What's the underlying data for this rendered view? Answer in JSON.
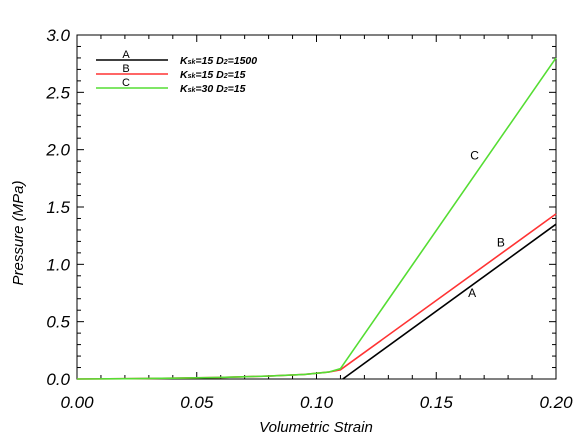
{
  "chart_data": {
    "type": "line",
    "title": "",
    "xlabel": "Volumetric Strain",
    "ylabel": "Pressure (MPa)",
    "xlim": [
      0.0,
      0.2
    ],
    "ylim": [
      0.0,
      3.0
    ],
    "x_ticks": [
      "0.00",
      "0.05",
      "0.10",
      "0.15",
      "0.20"
    ],
    "y_ticks": [
      "0.0",
      "0.5",
      "1.0",
      "1.5",
      "2.0",
      "2.5",
      "3.0"
    ],
    "grid": false,
    "legend_position": "top-left",
    "series": [
      {
        "name": "A",
        "legend_label": {
          "prefix": "K",
          "sub1": "sk",
          "mid": "=15 D",
          "sub2": "2",
          "suffix": "=1500"
        },
        "color": "#000000",
        "points": [
          [
            0.111,
            0.0
          ],
          [
            0.2,
            1.35
          ]
        ]
      },
      {
        "name": "B",
        "legend_label": {
          "prefix": "K",
          "sub1": "sk",
          "mid": "=15 D",
          "sub2": "2",
          "suffix": "=15"
        },
        "color": "#ff3333",
        "points": [
          [
            0.0,
            0.0
          ],
          [
            0.02,
            0.003
          ],
          [
            0.04,
            0.007
          ],
          [
            0.06,
            0.014
          ],
          [
            0.08,
            0.025
          ],
          [
            0.095,
            0.04
          ],
          [
            0.105,
            0.06
          ],
          [
            0.11,
            0.08
          ],
          [
            0.2,
            1.44
          ]
        ]
      },
      {
        "name": "C",
        "legend_label": {
          "prefix": "K",
          "sub1": "sk",
          "mid": "=30 D",
          "sub2": "2",
          "suffix": "=15"
        },
        "color": "#55dd33",
        "points": [
          [
            0.0,
            0.0
          ],
          [
            0.02,
            0.003
          ],
          [
            0.04,
            0.007
          ],
          [
            0.06,
            0.014
          ],
          [
            0.08,
            0.025
          ],
          [
            0.095,
            0.04
          ],
          [
            0.105,
            0.06
          ],
          [
            0.11,
            0.09
          ],
          [
            0.2,
            2.8
          ]
        ]
      }
    ],
    "annotations": [
      {
        "text": "C",
        "x": 0.166,
        "y": 1.95
      },
      {
        "text": "B",
        "x": 0.177,
        "y": 1.19
      },
      {
        "text": "A",
        "x": 0.165,
        "y": 0.75
      }
    ]
  }
}
